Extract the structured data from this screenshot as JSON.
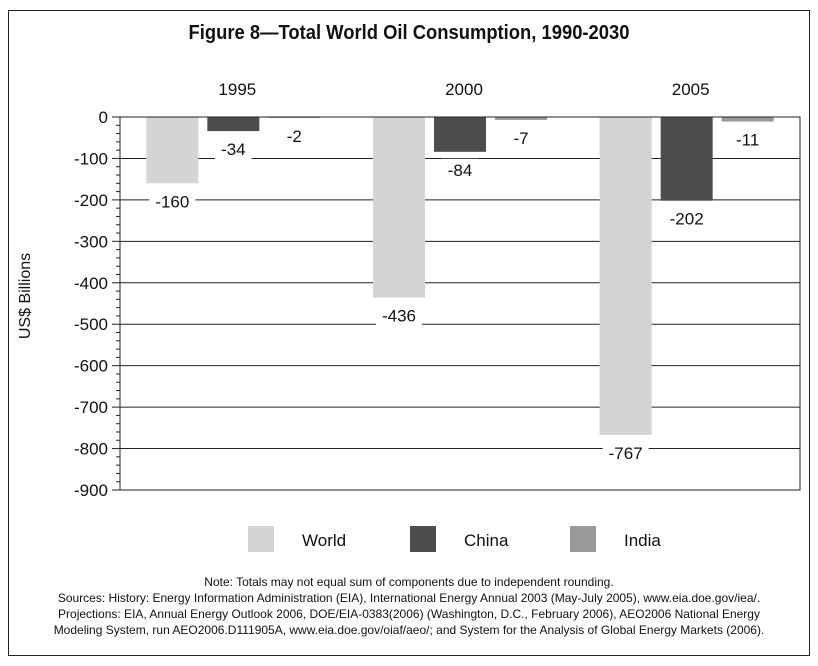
{
  "chart_data": {
    "type": "bar",
    "title": "Figure 8—Total World Oil Consumption, 1990-2030",
    "ylabel": "US$ Billions",
    "xlabel": "",
    "categories": [
      "1995",
      "2000",
      "2005"
    ],
    "series": [
      {
        "name": "World",
        "values": [
          -160,
          -436,
          -767
        ],
        "color": "#d4d4d4"
      },
      {
        "name": "China",
        "values": [
          -34,
          -84,
          -202
        ],
        "color": "#4d4d4d"
      },
      {
        "name": "India",
        "values": [
          -2,
          -7,
          -11
        ],
        "color": "#999999"
      }
    ],
    "ylim": [
      -900,
      0
    ],
    "yticks": [
      0,
      -100,
      -200,
      -300,
      -400,
      -500,
      -600,
      -700,
      -800,
      -900
    ],
    "grid": true,
    "legend_position": "bottom",
    "category_label_position": "top"
  },
  "notes": [
    "Note: Totals may not equal sum of components due to independent rounding.",
    "Sources: History: Energy Information Administration (EIA), International Energy Annual 2003 (May-July 2005), www.eia.doe.gov/iea/.",
    "Projections: EIA, Annual Energy Outlook 2006, DOE/EIA-0383(2006) (Washington, D.C., February 2006), AEO2006 National Energy",
    "Modeling System, run AEO2006.D111905A, www.eia.doe.gov/oiaf/aeo/; and System for the Analysis of Global Energy Markets (2006)."
  ]
}
